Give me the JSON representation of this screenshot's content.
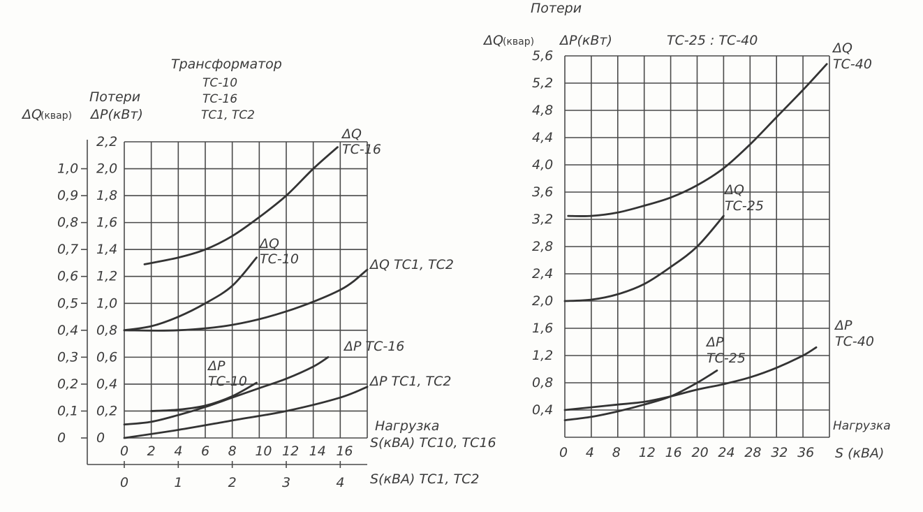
{
  "left": {
    "title_transformer": "Трансформатор",
    "title_models": [
      "TC-10",
      "TC-16",
      "TC1, TC2"
    ],
    "losses_label": "Потери",
    "dq_unit": "ΔQ",
    "dq_unit_small": "(квар)",
    "dp_unit": "ΔP(кВт)",
    "load_label": "Нагрузка",
    "xaxis_primary": "S(кВА) TC10, TC16",
    "xaxis_secondary": "S(кВА) TC1, TC2"
  },
  "right": {
    "losses_label": "Потери",
    "dq_unit": "ΔQ",
    "dq_unit_small": "(квар)",
    "dp_unit": "ΔP(кВт)",
    "title": "TC-25 : TC-40",
    "load_label": "Нагрузка",
    "xaxis": "S (кВА)"
  },
  "chart_data": [
    {
      "type": "line",
      "title": "Трансформатор TC-10, TC-16, TC1, TC2",
      "xlabel": "S(кВА) TC10, TC16",
      "x2label": "S(кВА) TC1, TC2",
      "ylabel": "Потери ΔP(кВт)",
      "y2label": "ΔQ (квар)",
      "xlim": [
        0,
        18
      ],
      "ylim": [
        0,
        2.2
      ],
      "grid": true,
      "x_ticks": [
        "0",
        "2",
        "4",
        "6",
        "8",
        "10",
        "12",
        "14",
        "16"
      ],
      "x_tick_values": [
        0,
        2,
        4,
        6,
        8,
        10,
        12,
        14,
        16
      ],
      "x2_ticks": [
        "0",
        "1",
        "2",
        "3",
        "4"
      ],
      "x2_tick_values": [
        0,
        4,
        8,
        12,
        16
      ],
      "y_ticks": [
        "0",
        "0,2",
        "0,4",
        "0,6",
        "0,8",
        "1,0",
        "1,2",
        "1,4",
        "1,6",
        "1,8",
        "2,0",
        "2,2"
      ],
      "y_tick_values": [
        0,
        0.2,
        0.4,
        0.6,
        0.8,
        1.0,
        1.2,
        1.4,
        1.6,
        1.8,
        2.0,
        2.2
      ],
      "y2_ticks": [
        "0",
        "0,1",
        "0,2",
        "0,3",
        "0,4",
        "0,5",
        "0,6",
        "0,7",
        "0,8",
        "0,9",
        "1,0"
      ],
      "y2_tick_values": [
        0,
        0.2,
        0.4,
        0.6,
        0.8,
        1.0,
        1.2,
        1.4,
        1.6,
        1.8,
        2.0
      ],
      "series": [
        {
          "name": "ΔQ TC-16",
          "label_lines": [
            "ΔQ",
            "TC-16"
          ],
          "x": [
            1.5,
            4,
            6,
            8,
            10,
            12,
            14,
            15.8
          ],
          "y": [
            1.29,
            1.34,
            1.4,
            1.5,
            1.64,
            1.8,
            2.0,
            2.16
          ]
        },
        {
          "name": "ΔQ TC-10",
          "label_lines": [
            "ΔQ",
            "TC-10"
          ],
          "x": [
            0,
            2,
            4,
            6,
            8,
            9.8
          ],
          "y": [
            0.8,
            0.83,
            0.9,
            1.0,
            1.13,
            1.34
          ]
        },
        {
          "name": "ΔQ TC1, TC2",
          "label_lines": [
            "ΔQ TC1, TC2"
          ],
          "x_unit": "S TC1,TC2",
          "x": [
            0,
            1,
            2,
            3,
            4,
            4.5
          ],
          "y": [
            0.8,
            0.8,
            0.84,
            0.94,
            1.1,
            1.25
          ]
        },
        {
          "name": "ΔP TC-16",
          "label_lines": [
            "ΔP TC-16"
          ],
          "x": [
            0,
            2,
            4,
            6,
            8,
            10,
            12,
            14,
            15.1
          ],
          "y": [
            0.1,
            0.12,
            0.17,
            0.23,
            0.3,
            0.37,
            0.44,
            0.53,
            0.6
          ]
        },
        {
          "name": "ΔP TC-10",
          "label_lines": [
            "ΔP",
            "TC-10"
          ],
          "x": [
            2,
            4,
            6,
            8,
            9.8
          ],
          "y": [
            0.2,
            0.21,
            0.24,
            0.31,
            0.41
          ]
        },
        {
          "name": "ΔP TC1, TC2",
          "label_lines": [
            "ΔP TC1, TC2"
          ],
          "x_unit": "S TC1,TC2",
          "x": [
            0,
            1,
            2,
            3,
            4,
            4.5
          ],
          "y": [
            0.0,
            0.06,
            0.13,
            0.2,
            0.3,
            0.38
          ]
        }
      ]
    },
    {
      "type": "line",
      "title": "TC-25 : TC-40",
      "xlabel": "S (кВА)",
      "ylabel": "Потери ΔQ (квар) ΔP(кВт)",
      "xlim": [
        0,
        40
      ],
      "ylim": [
        0,
        5.6
      ],
      "grid": true,
      "x_ticks": [
        "0",
        "4",
        "8",
        "12",
        "16",
        "20",
        "24",
        "28",
        "32",
        "36"
      ],
      "x_tick_values": [
        0,
        4,
        8,
        12,
        16,
        20,
        24,
        28,
        32,
        36
      ],
      "y_ticks": [
        "0,4",
        "0,8",
        "1,2",
        "1,6",
        "2,0",
        "2,4",
        "2,8",
        "3,2",
        "3,6",
        "4,0",
        "4,4",
        "4,8",
        "5,2",
        "5,6"
      ],
      "y_tick_values": [
        0.4,
        0.8,
        1.2,
        1.6,
        2.0,
        2.4,
        2.8,
        3.2,
        3.6,
        4.0,
        4.4,
        4.8,
        5.2,
        5.6
      ],
      "series": [
        {
          "name": "ΔQ TC-40",
          "label_lines": [
            "ΔQ",
            "TC-40"
          ],
          "x": [
            0.5,
            4,
            8,
            12,
            16,
            20,
            24,
            28,
            32,
            36,
            39.6
          ],
          "y": [
            3.25,
            3.25,
            3.3,
            3.4,
            3.52,
            3.7,
            3.95,
            4.3,
            4.7,
            5.1,
            5.48
          ]
        },
        {
          "name": "ΔQ TC-25",
          "label_lines": [
            "ΔQ",
            "TC-25"
          ],
          "x": [
            0,
            4,
            8,
            12,
            16,
            20,
            24
          ],
          "y": [
            2.0,
            2.02,
            2.1,
            2.25,
            2.5,
            2.8,
            3.25
          ]
        },
        {
          "name": "ΔP TC-40",
          "label_lines": [
            "ΔP",
            "TC-40"
          ],
          "x": [
            0,
            4,
            8,
            12,
            16,
            20,
            24,
            28,
            32,
            36,
            38
          ],
          "y": [
            0.4,
            0.44,
            0.48,
            0.52,
            0.6,
            0.7,
            0.78,
            0.88,
            1.02,
            1.2,
            1.32
          ]
        },
        {
          "name": "ΔP TC-25",
          "label_lines": [
            "ΔP",
            "TC-25"
          ],
          "x": [
            0,
            4,
            8,
            12,
            16,
            20,
            23
          ],
          "y": [
            0.25,
            0.3,
            0.38,
            0.48,
            0.6,
            0.8,
            0.98
          ]
        }
      ]
    }
  ]
}
